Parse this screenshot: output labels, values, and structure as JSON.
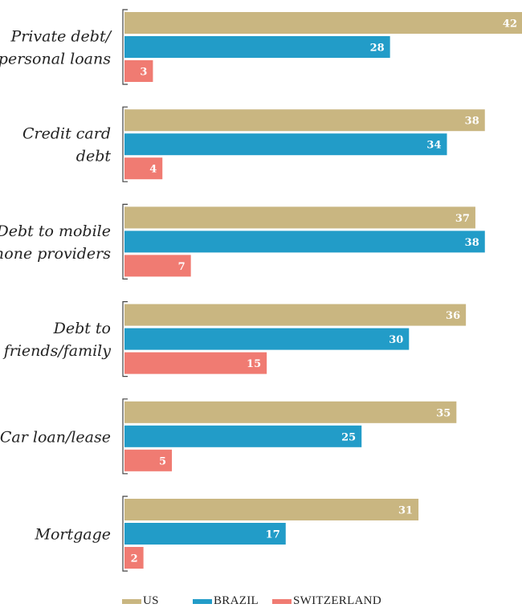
{
  "chart_data": {
    "type": "bar",
    "orientation": "horizontal",
    "categories": [
      [
        "Private debt/",
        "personal loans"
      ],
      [
        "Credit card",
        "debt"
      ],
      [
        "Debt to mobile",
        "phone providers"
      ],
      [
        "Debt to",
        "friends/family"
      ],
      [
        "Car loan/lease"
      ],
      [
        "Mortgage"
      ]
    ],
    "series": [
      {
        "name": "US",
        "color": "#c9b681",
        "values": [
          42,
          38,
          37,
          36,
          35,
          31
        ]
      },
      {
        "name": "BRAZIL",
        "color": "#229cc8",
        "values": [
          28,
          34,
          38,
          30,
          25,
          17
        ]
      },
      {
        "name": "SWITZERLAND",
        "color": "#f07b72",
        "values": [
          3,
          4,
          7,
          15,
          5,
          2
        ]
      }
    ],
    "xlim": [
      0,
      42
    ],
    "grid": false,
    "legend": "bottom"
  }
}
